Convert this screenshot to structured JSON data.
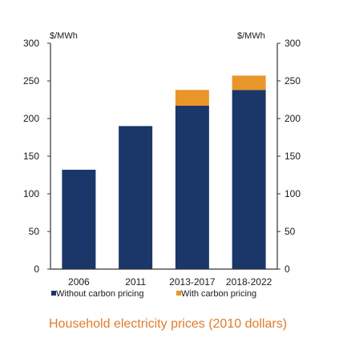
{
  "chart_data": {
    "type": "bar",
    "stacked": true,
    "categories": [
      "2006",
      "2011",
      "2013-2017",
      "2018-2022"
    ],
    "series": [
      {
        "name": "Without carbon pricing",
        "values": [
          132,
          190,
          217,
          238
        ],
        "color": "#1b3668"
      },
      {
        "name": "With carbon pricing",
        "values": [
          0,
          0,
          21,
          19
        ],
        "color": "#e8962a"
      }
    ],
    "ylim": [
      0,
      300
    ],
    "yticks": [
      0,
      50,
      100,
      150,
      200,
      250,
      300
    ],
    "ylabel_left": "$/MWh",
    "ylabel_right": "$/MWh",
    "grid": false,
    "legend_position": "bottom",
    "caption": "Household electricity prices (2010 dollars)",
    "caption_color": "#e07b2a"
  }
}
